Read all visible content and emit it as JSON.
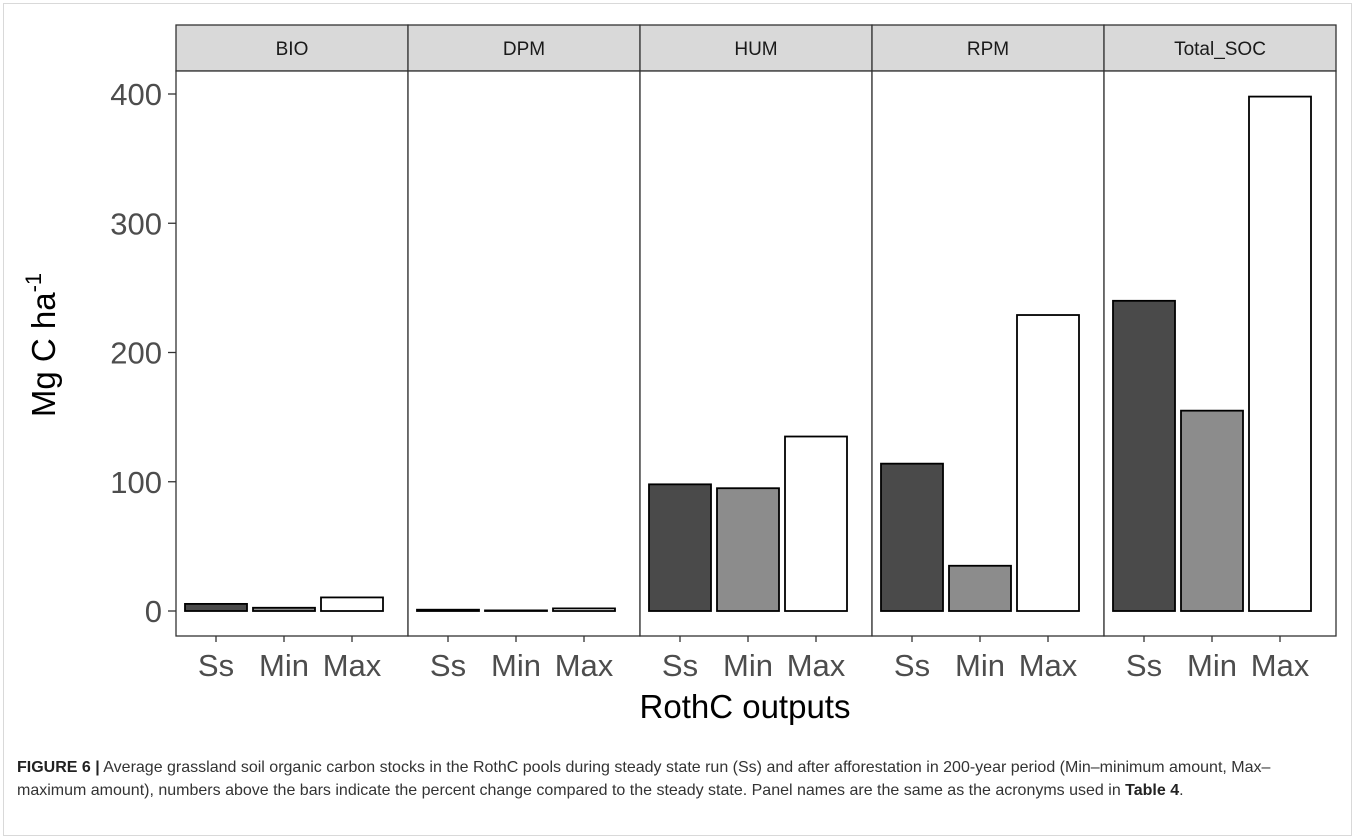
{
  "chart_data": {
    "type": "bar",
    "ylabel": "Mg C ha",
    "ylabel_superscript": "-1",
    "xlabel": "RothC outputs",
    "ylim": [
      0,
      400
    ],
    "yticks": [
      "0",
      "100",
      "200",
      "300",
      "400"
    ],
    "categories": [
      "Ss",
      "Min",
      "Max"
    ],
    "bar_colors": [
      "#4a4a4a",
      "#8c8c8c",
      "#ffffff"
    ],
    "panels": [
      {
        "name": "BIO",
        "values": [
          5.5,
          2.5,
          10.5
        ]
      },
      {
        "name": "DPM",
        "values": [
          1.0,
          0.3,
          2.0
        ]
      },
      {
        "name": "HUM",
        "values": [
          98,
          95,
          135
        ]
      },
      {
        "name": "RPM",
        "values": [
          114,
          35,
          229
        ]
      },
      {
        "name": "Total_SOC",
        "values": [
          240,
          155,
          398
        ]
      }
    ]
  },
  "caption": {
    "label": "FIGURE 6 |",
    "text_before": " Average grassland soil organic carbon stocks in the RothC pools during steady state run (Ss) and after afforestation in 200-year period (Min–minimum amount, Max–maximum amount), numbers above the bars indicate the percent change compared to the steady state. Panel names are the same as the acronyms used in ",
    "ref": "Table 4",
    "text_after": "."
  }
}
